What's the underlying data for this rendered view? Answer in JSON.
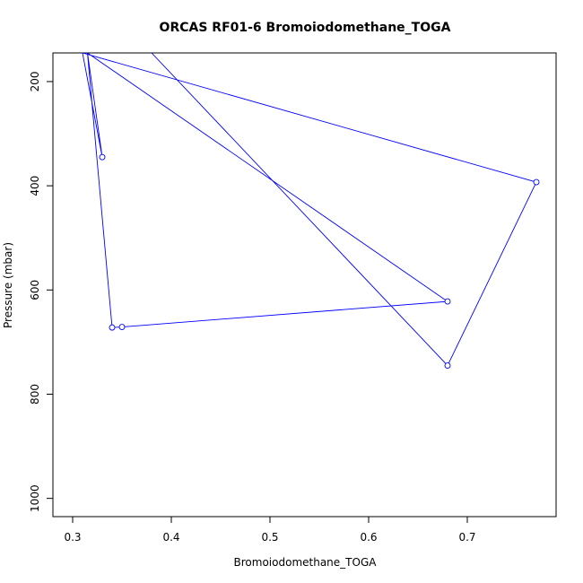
{
  "chart_data": {
    "type": "line",
    "title": "ORCAS RF01-6 Bromoiodomethane_TOGA",
    "xlabel": "Bromoiodomethane_TOGA",
    "ylabel": "Pressure (mbar)",
    "xlim": [
      0.28,
      0.79
    ],
    "ylim": [
      1035,
      145
    ],
    "y_reversed": true,
    "x_ticks": [
      0.3,
      0.4,
      0.5,
      0.6,
      0.7
    ],
    "x_tick_labels": [
      "0.3",
      "0.4",
      "0.5",
      "0.6",
      "0.7"
    ],
    "y_ticks": [
      200,
      400,
      600,
      800,
      1000
    ],
    "y_tick_labels": [
      "200",
      "400",
      "600",
      "800",
      "1000"
    ],
    "color": "#0000ff",
    "grid": false,
    "series": [
      {
        "points": [
          {
            "x": 0.38,
            "y": 145
          },
          {
            "x": 0.68,
            "y": 745
          },
          {
            "x": 0.77,
            "y": 393
          },
          {
            "x": 0.31,
            "y": 145
          },
          {
            "x": 0.33,
            "y": 345
          },
          {
            "x": 0.315,
            "y": 145
          },
          {
            "x": 0.68,
            "y": 622
          },
          {
            "x": 0.35,
            "y": 671
          },
          {
            "x": 0.34,
            "y": 672
          },
          {
            "x": 0.315,
            "y": 145
          }
        ],
        "markers": [
          {
            "x": 0.68,
            "y": 745
          },
          {
            "x": 0.77,
            "y": 393
          },
          {
            "x": 0.33,
            "y": 345
          },
          {
            "x": 0.68,
            "y": 622
          },
          {
            "x": 0.35,
            "y": 671
          },
          {
            "x": 0.34,
            "y": 672
          }
        ]
      }
    ]
  }
}
